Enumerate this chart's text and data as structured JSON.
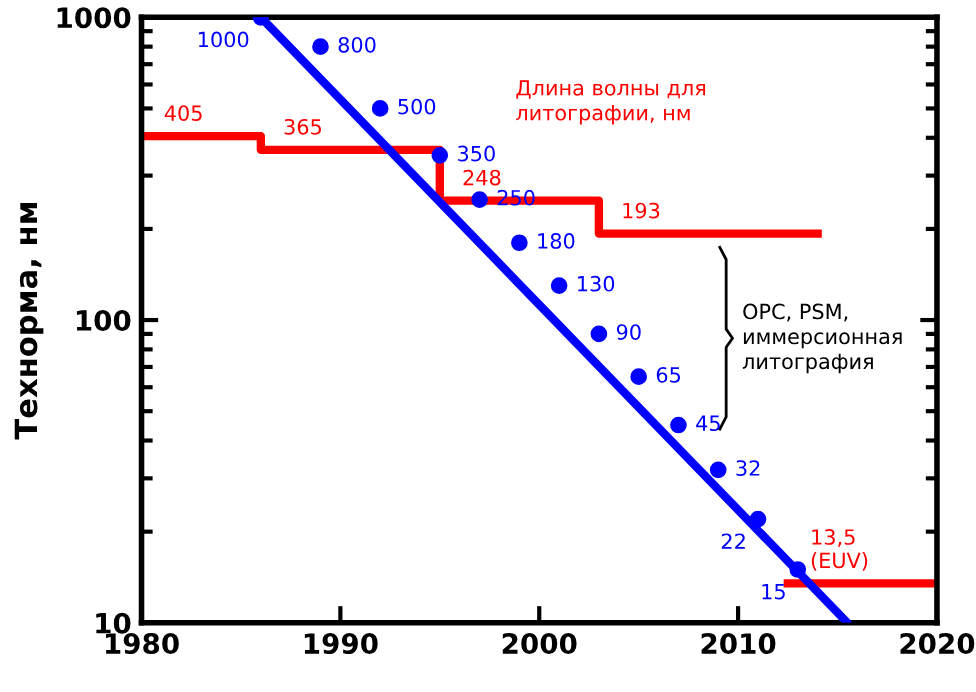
{
  "chart_data": {
    "type": "scatter",
    "ylabel": "Технорма, нм",
    "log": "y",
    "xlim": [
      1980,
      2020
    ],
    "ylim": [
      10,
      1000
    ],
    "xticks": [
      1980,
      1990,
      2000,
      2010,
      2020
    ],
    "yticks": [
      10,
      100,
      1000
    ],
    "grid": false,
    "series": [
      {
        "type": "line",
        "color": "#0000ff",
        "x": [
          1986,
          2015.5
        ],
        "values": [
          1000,
          10
        ]
      },
      {
        "marker": "circle",
        "color": "#0000ff",
        "x": [
          1986,
          1989,
          1992,
          1995,
          1997,
          1999,
          2001,
          2003,
          2005,
          2007,
          2009,
          2011,
          2013
        ],
        "values": [
          1000,
          800,
          500,
          350,
          250,
          180,
          130,
          90,
          65,
          45,
          32,
          22,
          15
        ],
        "value_labels": [
          "1000",
          "800",
          "500",
          "350",
          "250",
          "180",
          "130",
          "90",
          "65",
          "45",
          "32",
          "22",
          "15"
        ]
      },
      {
        "type": "step",
        "color": "#ff0000",
        "x": [
          1980,
          1986,
          1995,
          2003,
          2014
        ],
        "values": [
          405,
          365,
          248,
          193,
          193
        ],
        "value_labels": [
          "405",
          "365",
          "248",
          "193",
          null
        ]
      },
      {
        "type": "step",
        "color": "#ff0000",
        "x": [
          2012.5,
          2020
        ],
        "values": [
          13.5,
          13.5
        ],
        "value_labels": [
          "13,5\n(EUV)",
          null
        ]
      }
    ],
    "annotations": [
      "Длина волны для\nлитографии, нм",
      "OPC, PSM,\nиммерсионная\nлитография"
    ]
  }
}
